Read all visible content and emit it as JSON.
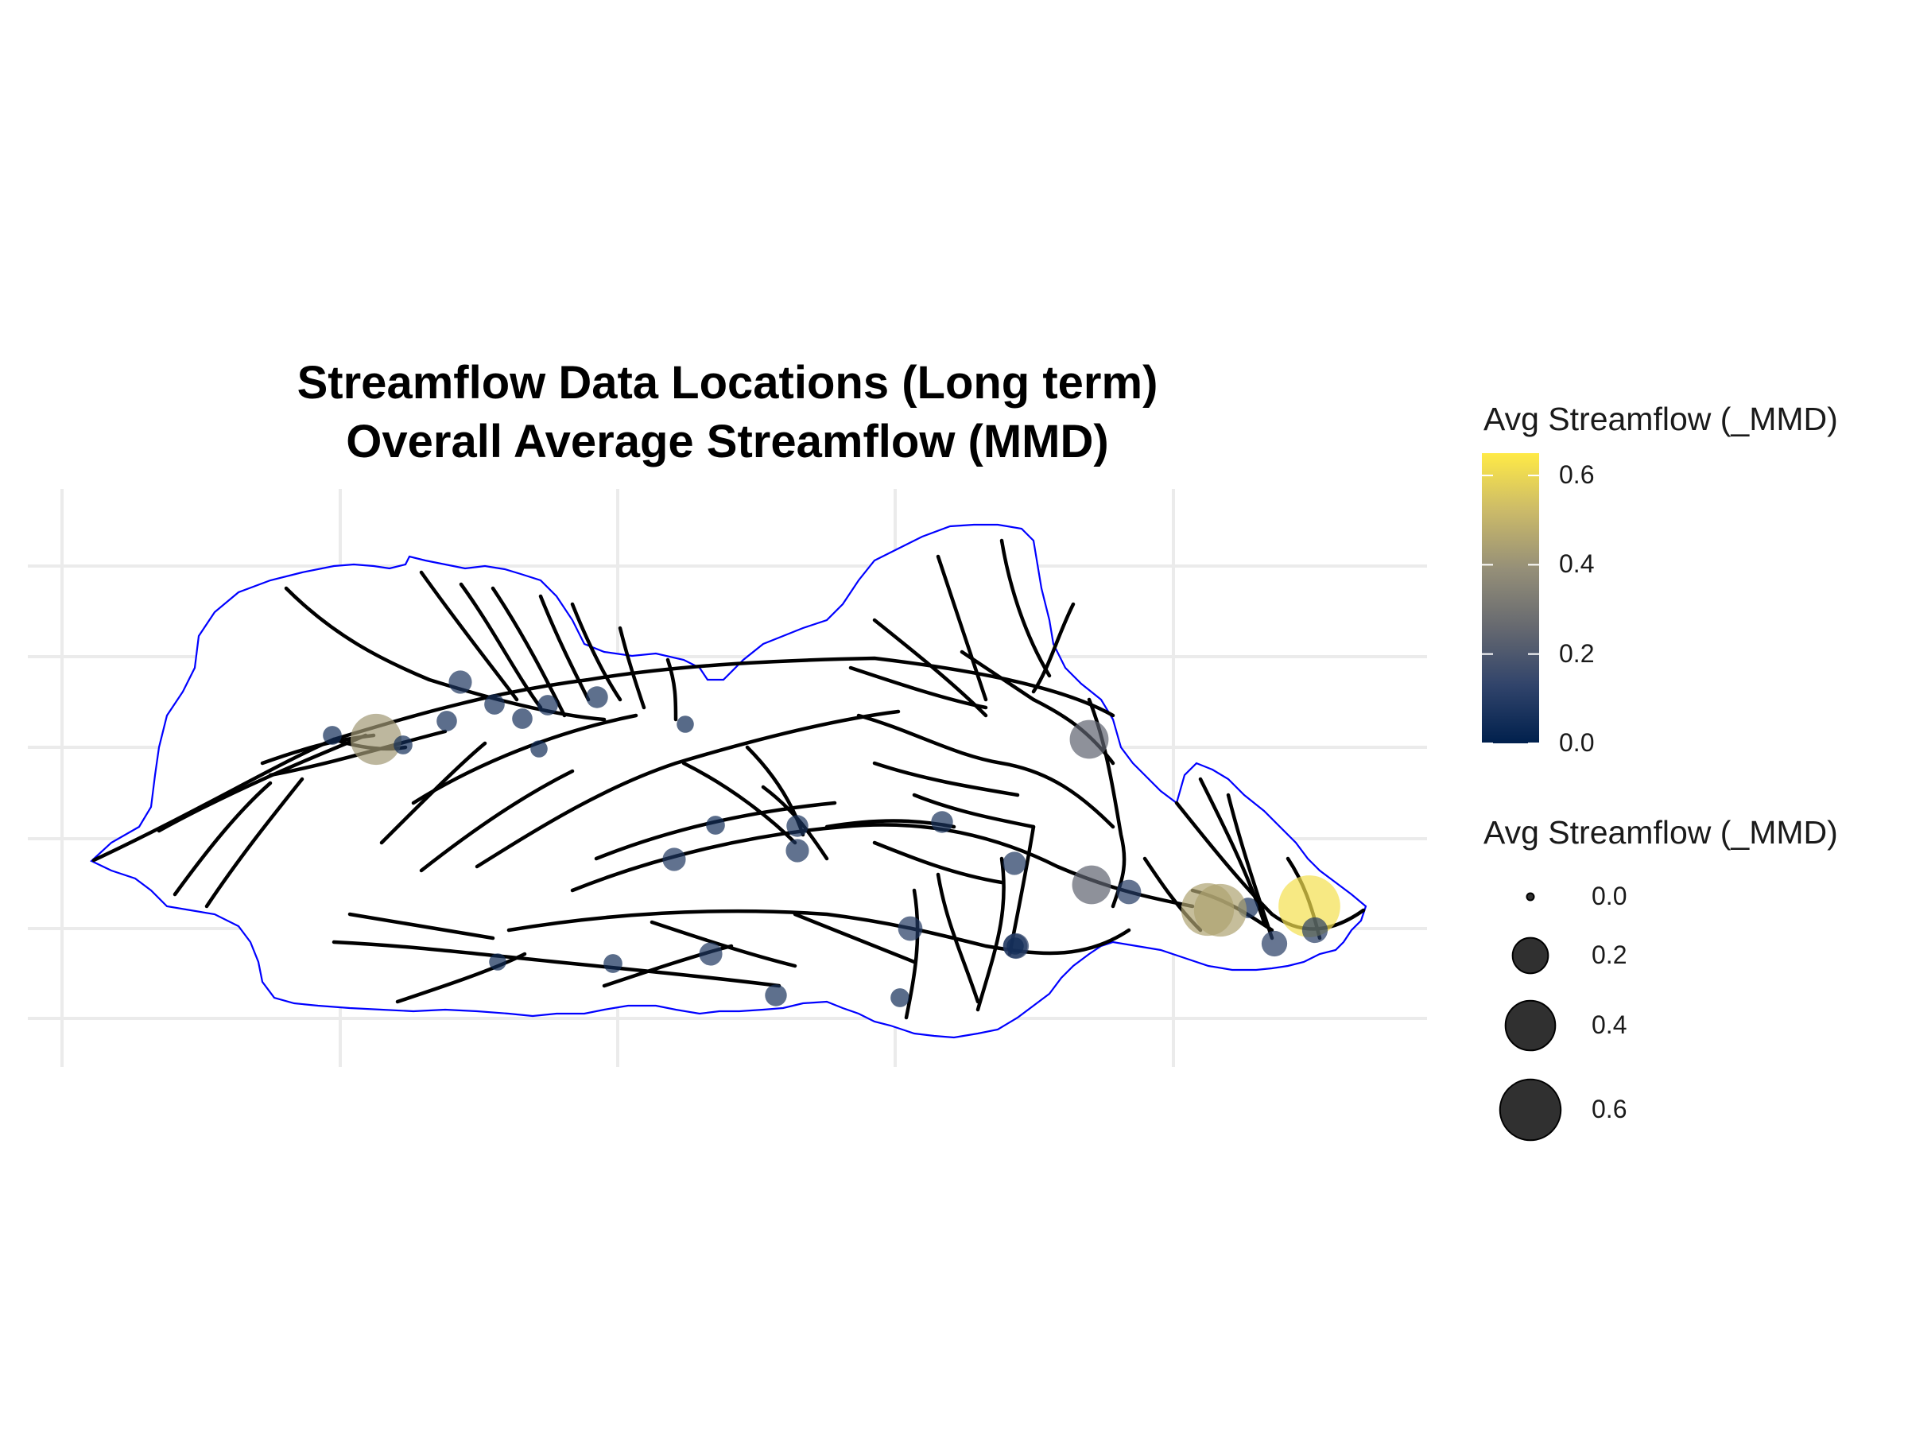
{
  "title_line1": "Streamflow Data Locations (Long term)",
  "title_line2": "Overall Average Streamflow (MMD)",
  "map": {
    "basemap": "white watershed polygon with blue outline and black stream network on light grey grid",
    "boundary_color": "#0000ff",
    "stream_color": "#000000",
    "grid_color": "#ebebeb",
    "stations": [
      {
        "value": 0.05
      },
      {
        "value": 0.42
      },
      {
        "value": 0.05
      },
      {
        "value": 0.08
      },
      {
        "value": 0.06
      },
      {
        "value": 0.06
      },
      {
        "value": 0.06
      },
      {
        "value": 0.06
      },
      {
        "value": 0.04
      },
      {
        "value": 0.07
      },
      {
        "value": 0.04
      },
      {
        "value": 0.05
      },
      {
        "value": 0.07
      },
      {
        "value": 0.08
      },
      {
        "value": 0.07
      },
      {
        "value": 0.08
      },
      {
        "value": 0.04
      },
      {
        "value": 0.05
      },
      {
        "value": 0.08
      },
      {
        "value": 0.09
      },
      {
        "value": 0.05
      },
      {
        "value": 0.1
      },
      {
        "value": 0.07
      },
      {
        "value": 0.08
      },
      {
        "value": 0.09
      },
      {
        "value": 0.04
      },
      {
        "value": 0.06
      },
      {
        "value": 0.24
      },
      {
        "value": 0.24
      },
      {
        "value": 0.09
      },
      {
        "value": 0.45
      },
      {
        "value": 0.1
      },
      {
        "value": 0.45
      },
      {
        "value": 0.62
      },
      {
        "value": 0.1
      }
    ]
  },
  "legend_color": {
    "title": "Avg Streamflow (_MMD)",
    "ticks": [
      "0.6",
      "0.4",
      "0.2",
      "0.0"
    ],
    "tick_values": [
      0.6,
      0.4,
      0.2,
      0.0
    ],
    "range": [
      0.0,
      0.65
    ],
    "colors": [
      "#00204d",
      "#31446b",
      "#666970",
      "#958f78",
      "#cbba69",
      "#ffea46"
    ]
  },
  "legend_size": {
    "title": "Avg Streamflow (_MMD)",
    "items": [
      {
        "label": "0.0",
        "value": 0.0
      },
      {
        "label": "0.2",
        "value": 0.2
      },
      {
        "label": "0.4",
        "value": 0.4
      },
      {
        "label": "0.6",
        "value": 0.6
      }
    ],
    "color": "#1a1a1a"
  }
}
